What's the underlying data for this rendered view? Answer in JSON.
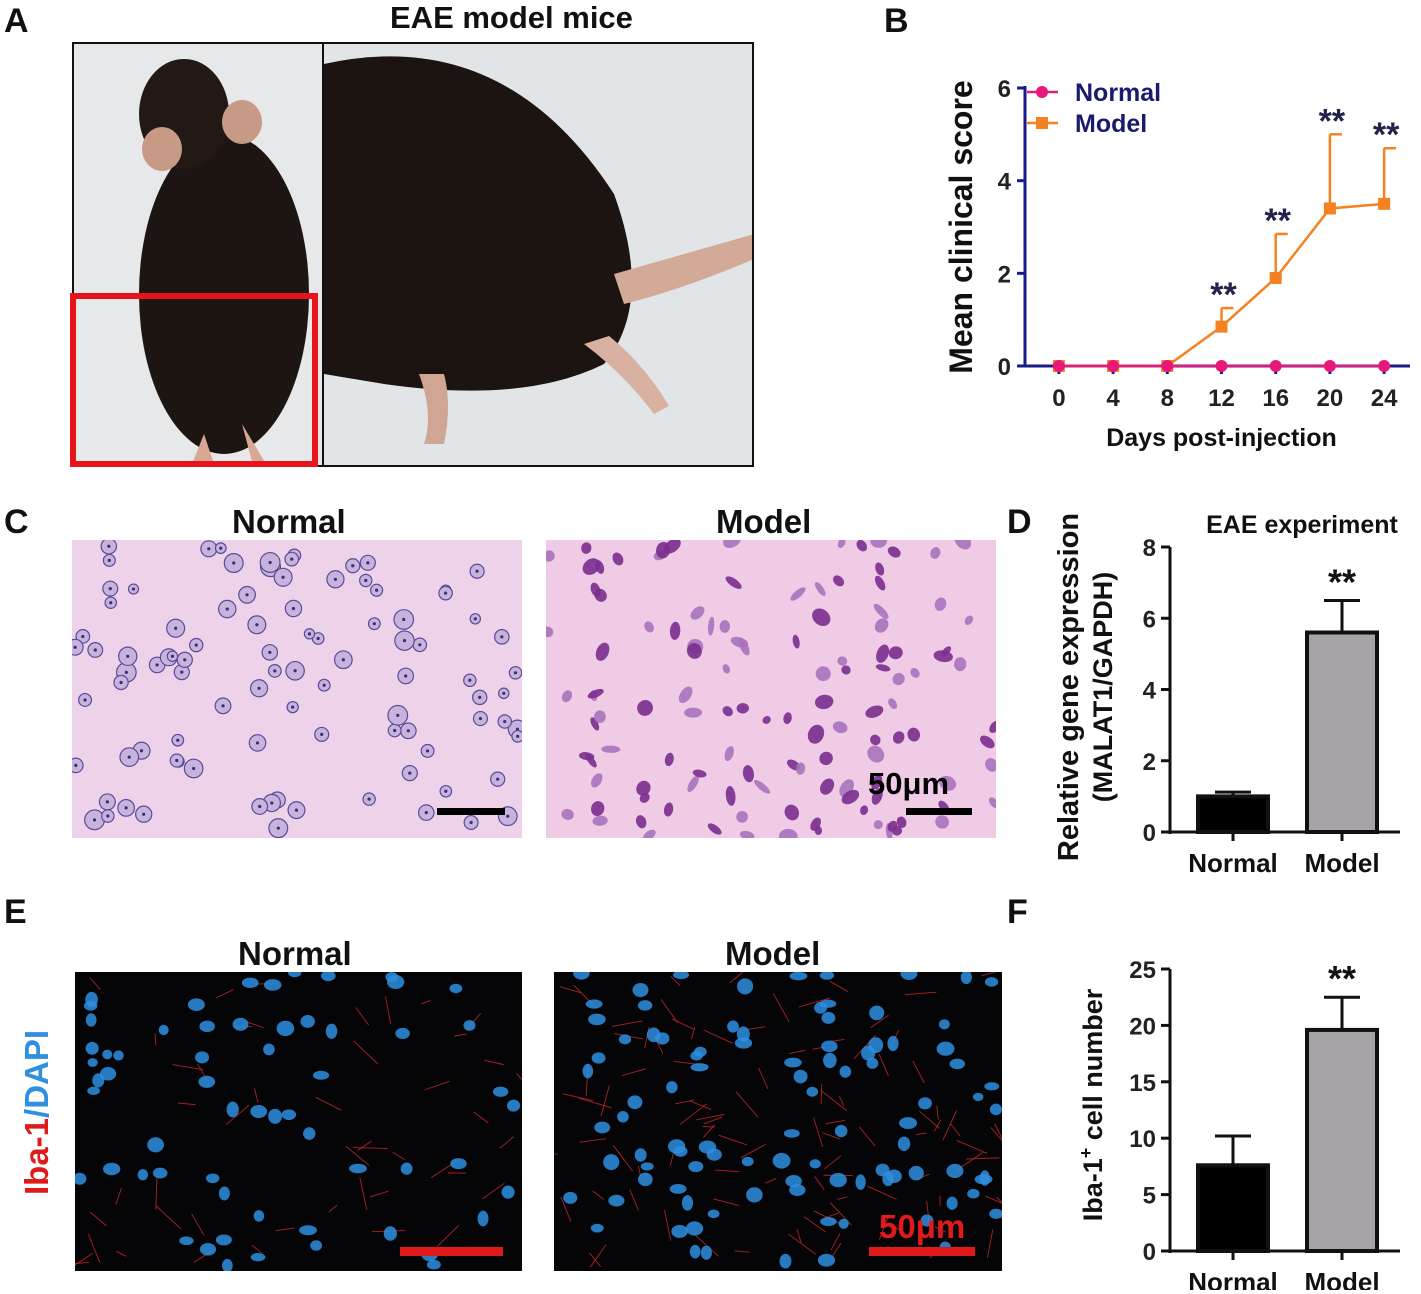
{
  "panels": {
    "A": {
      "letter": "A",
      "title": "EAE model mice"
    },
    "B": {
      "letter": "B"
    },
    "C": {
      "letter": "C",
      "left_title": "Normal",
      "right_title": "Model",
      "scale_label": "50μm"
    },
    "D": {
      "letter": "D",
      "title": "EAE experiment"
    },
    "E": {
      "letter": "E",
      "left_title": "Normal",
      "right_title": "Model",
      "scale_label": "50μm",
      "side_label_red": "Iba-1",
      "side_label_blue": "/DAPI"
    },
    "F": {
      "letter": "F"
    }
  },
  "colors": {
    "normal_line": "#e6197a",
    "model_line": "#f58220",
    "axis_blue": "#1a1a8c",
    "legend_text": "#1a1a6e",
    "bar_normal": "#000000",
    "bar_model": "#a7a4a8",
    "scale_red": "#e01a1a",
    "he_pink": "#efcdea",
    "fluo_blue": "#2f8fe0"
  },
  "chart_data": [
    {
      "id": "B",
      "type": "line",
      "xlabel": "Days post-injection",
      "ylabel": "Mean clinical score",
      "x": [
        0,
        4,
        8,
        12,
        16,
        20,
        24
      ],
      "ylim": [
        0,
        6
      ],
      "yticks": [
        0,
        2,
        4,
        6
      ],
      "legend": "top-left",
      "series": [
        {
          "name": "Normal",
          "marker": "circle",
          "values": [
            0,
            0,
            0,
            0,
            0,
            0,
            0
          ]
        },
        {
          "name": "Model",
          "marker": "square",
          "values": [
            0,
            0,
            0,
            0.85,
            1.9,
            3.4,
            3.5
          ],
          "error": [
            0,
            0,
            0,
            0.4,
            0.95,
            1.6,
            1.2
          ]
        }
      ],
      "annotations": [
        {
          "x": 12,
          "text": "**"
        },
        {
          "x": 16,
          "text": "**"
        },
        {
          "x": 20,
          "text": "**"
        },
        {
          "x": 24,
          "text": "**"
        }
      ]
    },
    {
      "id": "D",
      "type": "bar",
      "title": "EAE experiment",
      "ylabel_line1": "Relative gene expression",
      "ylabel_line2": "(MALAT1/GAPDH)",
      "categories": [
        "Normal",
        "Model"
      ],
      "values": [
        1.0,
        5.6
      ],
      "error": [
        0.12,
        0.9
      ],
      "ylim": [
        0,
        8
      ],
      "yticks": [
        0,
        2,
        4,
        6,
        8
      ],
      "annotations": [
        {
          "category": "Model",
          "text": "**"
        }
      ]
    },
    {
      "id": "F",
      "type": "bar",
      "ylabel_main": "Iba-1",
      "ylabel_sup": "+",
      "ylabel_rest": " cell number",
      "categories": [
        "Normal",
        "Model"
      ],
      "values": [
        7.6,
        19.6
      ],
      "error": [
        2.6,
        2.9
      ],
      "ylim": [
        0,
        25
      ],
      "yticks": [
        0,
        5,
        10,
        15,
        20,
        25
      ],
      "annotations": [
        {
          "category": "Model",
          "text": "**"
        }
      ]
    }
  ]
}
